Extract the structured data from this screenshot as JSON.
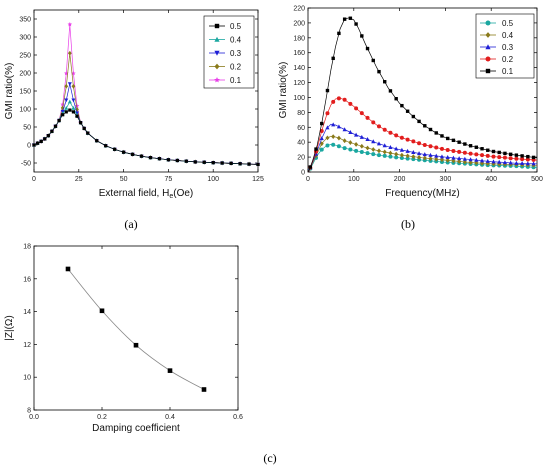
{
  "panel_labels": [
    "(a)",
    "(b)",
    "(c)"
  ],
  "chart_data": [
    {
      "id": "a",
      "type": "line",
      "xlabel": "External field, H",
      "xlabel_sub": "e",
      "xlabel_unit": "(Oe)",
      "ylabel": "GMI ratio(%)",
      "xlim": [
        0,
        125
      ],
      "ylim": [
        -75,
        375
      ],
      "xticks": [
        0,
        25,
        50,
        75,
        100,
        125
      ],
      "yticks": [
        -50,
        0,
        50,
        100,
        150,
        200,
        250,
        300,
        350
      ],
      "legend": "top-right",
      "series": [
        {
          "name": "0.5",
          "color": "#000000",
          "marker": "square",
          "peak": 97
        },
        {
          "name": "0.4",
          "color": "#1aa7a0",
          "marker": "triangle-up",
          "peak": 120
        },
        {
          "name": "0.3",
          "color": "#1f1fd6",
          "marker": "triangle-down",
          "peak": 170
        },
        {
          "name": "0.2",
          "color": "#8a7a1a",
          "marker": "diamond",
          "peak": 255
        },
        {
          "name": "0.1",
          "color": "#e83ee8",
          "marker": "star",
          "peak": 335
        }
      ],
      "common_curve": {
        "x": [
          0,
          2,
          4,
          6,
          8,
          10,
          12,
          14,
          16,
          18,
          20,
          22,
          24,
          26,
          28,
          30,
          35,
          40,
          45,
          50,
          55,
          60,
          65,
          70,
          75,
          80,
          85,
          90,
          95,
          100,
          105,
          110,
          115,
          120,
          125
        ],
        "y": [
          0,
          5,
          10,
          17,
          26,
          38,
          52,
          68,
          84,
          92,
          null,
          92,
          80,
          62,
          46,
          33,
          12,
          -2,
          -12,
          -20,
          -26,
          -31,
          -35,
          -38,
          -41,
          -43,
          -45,
          -47,
          -48,
          -49,
          -50,
          -51,
          -52,
          -53,
          -54
        ]
      },
      "peak_x": 20
    },
    {
      "id": "b",
      "type": "line",
      "xlabel": "Frequency(MHz)",
      "ylabel": "GMI ratio(%)",
      "xlim": [
        0,
        500
      ],
      "ylim": [
        0,
        220
      ],
      "xticks": [
        0,
        100,
        200,
        300,
        400,
        500
      ],
      "yticks": [
        0,
        20,
        40,
        60,
        80,
        100,
        120,
        140,
        160,
        180,
        200,
        220
      ],
      "legend": "top-right",
      "series": [
        {
          "name": "0.5",
          "color": "#1aa7a0",
          "marker": "circle",
          "points": [
            [
              1,
              0
            ],
            [
              10,
              10
            ],
            [
              20,
              22
            ],
            [
              30,
              30
            ],
            [
              40,
              35
            ],
            [
              50,
              37
            ],
            [
              60,
              36
            ],
            [
              70,
              34
            ],
            [
              80,
              32
            ],
            [
              100,
              29
            ],
            [
              125,
              26
            ],
            [
              150,
              23
            ],
            [
              175,
              21
            ],
            [
              200,
              19
            ],
            [
              250,
              16
            ],
            [
              300,
              13
            ],
            [
              350,
              11
            ],
            [
              400,
              9
            ],
            [
              450,
              8
            ],
            [
              500,
              6
            ]
          ]
        },
        {
          "name": "0.4",
          "color": "#8a7a1a",
          "marker": "diamond",
          "points": [
            [
              1,
              0
            ],
            [
              10,
              12
            ],
            [
              20,
              25
            ],
            [
              30,
              38
            ],
            [
              40,
              45
            ],
            [
              50,
              48
            ],
            [
              60,
              47
            ],
            [
              70,
              45
            ],
            [
              80,
              42
            ],
            [
              100,
              38
            ],
            [
              125,
              33
            ],
            [
              150,
              29
            ],
            [
              175,
              26
            ],
            [
              200,
              23
            ],
            [
              250,
              19
            ],
            [
              300,
              16
            ],
            [
              350,
              13
            ],
            [
              400,
              11
            ],
            [
              450,
              10
            ],
            [
              500,
              9
            ]
          ]
        },
        {
          "name": "0.3",
          "color": "#1f1fd6",
          "marker": "triangle-up",
          "points": [
            [
              1,
              0
            ],
            [
              10,
              13
            ],
            [
              20,
              28
            ],
            [
              30,
              45
            ],
            [
              40,
              58
            ],
            [
              50,
              64
            ],
            [
              60,
              63
            ],
            [
              70,
              60
            ],
            [
              80,
              57
            ],
            [
              100,
              51
            ],
            [
              125,
              45
            ],
            [
              150,
              39
            ],
            [
              175,
              34
            ],
            [
              200,
              30
            ],
            [
              250,
              24
            ],
            [
              300,
              20
            ],
            [
              350,
              17
            ],
            [
              400,
              14
            ],
            [
              450,
              12
            ],
            [
              500,
              11
            ]
          ]
        },
        {
          "name": "0.2",
          "color": "#e21d1d",
          "marker": "circle",
          "points": [
            [
              1,
              0
            ],
            [
              10,
              14
            ],
            [
              20,
              32
            ],
            [
              30,
              55
            ],
            [
              40,
              75
            ],
            [
              50,
              90
            ],
            [
              60,
              98
            ],
            [
              70,
              99
            ],
            [
              80,
              97
            ],
            [
              100,
              88
            ],
            [
              125,
              75
            ],
            [
              150,
              63
            ],
            [
              175,
              54
            ],
            [
              200,
              47
            ],
            [
              250,
              37
            ],
            [
              300,
              30
            ],
            [
              350,
              25
            ],
            [
              400,
              21
            ],
            [
              450,
              18
            ],
            [
              500,
              16
            ]
          ]
        },
        {
          "name": "0.1",
          "color": "#000000",
          "marker": "square",
          "points": [
            [
              1,
              0
            ],
            [
              10,
              15
            ],
            [
              20,
              36
            ],
            [
              30,
              65
            ],
            [
              40,
              100
            ],
            [
              50,
              137
            ],
            [
              60,
              168
            ],
            [
              70,
              192
            ],
            [
              80,
              205
            ],
            [
              90,
              207
            ],
            [
              100,
              204
            ],
            [
              110,
              193
            ],
            [
              125,
              172
            ],
            [
              150,
              140
            ],
            [
              175,
              113
            ],
            [
              200,
              92
            ],
            [
              225,
              77
            ],
            [
              250,
              64
            ],
            [
              275,
              54
            ],
            [
              300,
              46
            ],
            [
              350,
              36
            ],
            [
              400,
              28
            ],
            [
              450,
              23
            ],
            [
              500,
              19
            ]
          ]
        }
      ]
    },
    {
      "id": "c",
      "type": "line",
      "xlabel": "Damping coefficient",
      "ylabel": "|Z|(Ω)",
      "xlim": [
        0.0,
        0.6
      ],
      "ylim": [
        8,
        18
      ],
      "xticks": [
        "0.0",
        "0.2",
        "0.4",
        "0.6"
      ],
      "yticks": [
        8,
        10,
        12,
        14,
        16,
        18
      ],
      "x": [
        0.1,
        0.2,
        0.3,
        0.4,
        0.5
      ],
      "y": [
        16.6,
        14.05,
        11.95,
        10.4,
        9.25
      ],
      "marker": "square",
      "color": "#000000"
    }
  ]
}
